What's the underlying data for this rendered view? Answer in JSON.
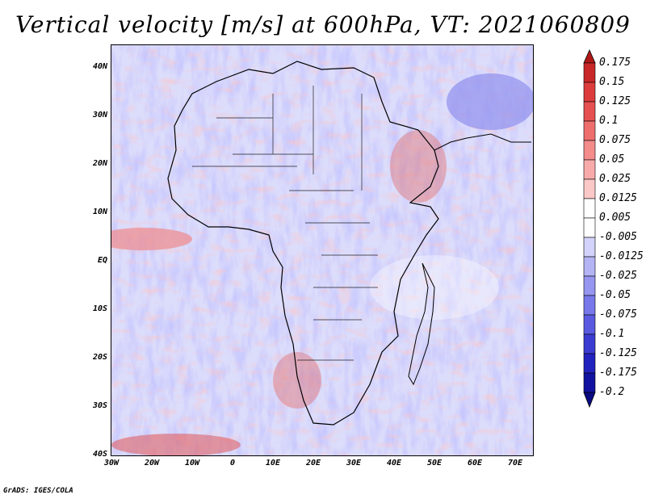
{
  "title": "Vertical velocity [m/s] at 600hPa, VT: 2021060809",
  "footer": "GrADS: IGES/COLA",
  "axes": {
    "lat_labels": [
      "40N",
      "30N",
      "20N",
      "10N",
      "EQ",
      "10S",
      "20S",
      "30S",
      "40S"
    ],
    "lon_labels": [
      "30W",
      "20W",
      "10W",
      "0",
      "10E",
      "20E",
      "30E",
      "40E",
      "50E",
      "60E",
      "70E"
    ]
  },
  "colorbar": {
    "levels": [
      "0.175",
      "0.15",
      "0.125",
      "0.1",
      "0.075",
      "0.05",
      "0.025",
      "0.0125",
      "0.005",
      "-0.005",
      "-0.0125",
      "-0.025",
      "-0.05",
      "-0.075",
      "-0.1",
      "-0.125",
      "-0.175",
      "-0.2"
    ],
    "colors": [
      "#b01818",
      "#c82828",
      "#dc3c3c",
      "#e65050",
      "#ee6e6e",
      "#f48c8c",
      "#f8aaaa",
      "#fbc8c8",
      "#ffffff",
      "#ffffff",
      "#d2d2fa",
      "#b4b4f5",
      "#9696f0",
      "#7878eb",
      "#5a5ae1",
      "#3c3cd2",
      "#2222be",
      "#1212a0",
      "#0a0a82"
    ]
  },
  "colors": {
    "land_line": "#000000",
    "ascent": "#e04040",
    "descent": "#5050e0"
  }
}
